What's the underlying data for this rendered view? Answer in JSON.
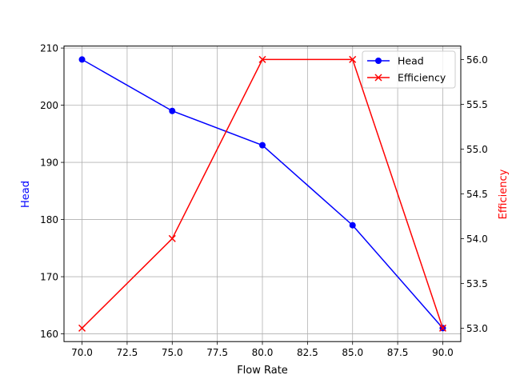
{
  "chart_data": {
    "type": "line",
    "title": "",
    "xlabel": "Flow Rate",
    "ylabel": "Head",
    "y2label": "Efficiency",
    "x": [
      70,
      75,
      80,
      85,
      90
    ],
    "series": [
      {
        "name": "Head",
        "axis": "left",
        "color": "#0000ff",
        "marker": "circle",
        "values": [
          208,
          199,
          193,
          179,
          161
        ]
      },
      {
        "name": "Efficiency",
        "axis": "right",
        "color": "#ff0000",
        "marker": "x",
        "values": [
          53,
          54,
          56,
          56,
          53
        ]
      }
    ],
    "xlim": [
      69,
      91
    ],
    "ylim": [
      158.65,
      210.35
    ],
    "y2lim": [
      52.85,
      56.15
    ],
    "xticks": [
      "70.0",
      "72.5",
      "75.0",
      "77.5",
      "80.0",
      "82.5",
      "85.0",
      "87.5",
      "90.0"
    ],
    "yticks": [
      "160",
      "170",
      "180",
      "190",
      "200",
      "210"
    ],
    "y2ticks": [
      "53.0",
      "53.5",
      "54.0",
      "54.5",
      "55.0",
      "55.5",
      "56.0"
    ],
    "grid": true,
    "legend_position": "upper right"
  }
}
